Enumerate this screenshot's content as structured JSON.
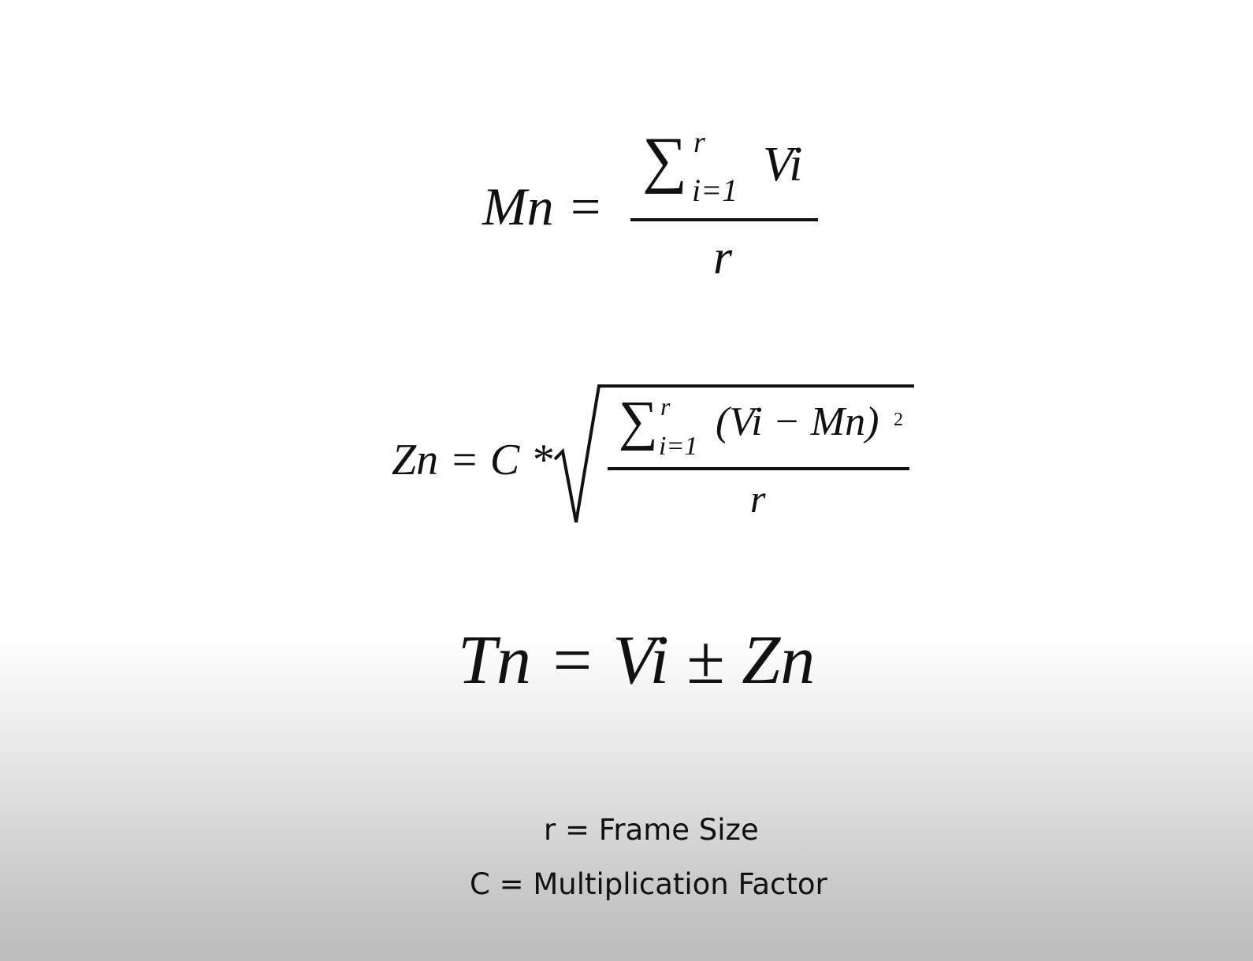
{
  "equations": {
    "mean": {
      "lhs": "Mn =",
      "sigma": "∑",
      "upper_limit": "r",
      "lower_limit": "i=1",
      "summand": "Vi",
      "denominator": "r"
    },
    "threshold": {
      "lhs": "Zn = C *",
      "sigma": "∑",
      "upper_limit": "r",
      "lower_limit": "i=1",
      "summand": "(Vi − Mn)",
      "exponent": "2",
      "denominator": "r"
    },
    "bound": {
      "text": "Tn = Vi ± Zn"
    }
  },
  "legend": [
    "r = Frame Size",
    "C = Multiplication Factor"
  ]
}
